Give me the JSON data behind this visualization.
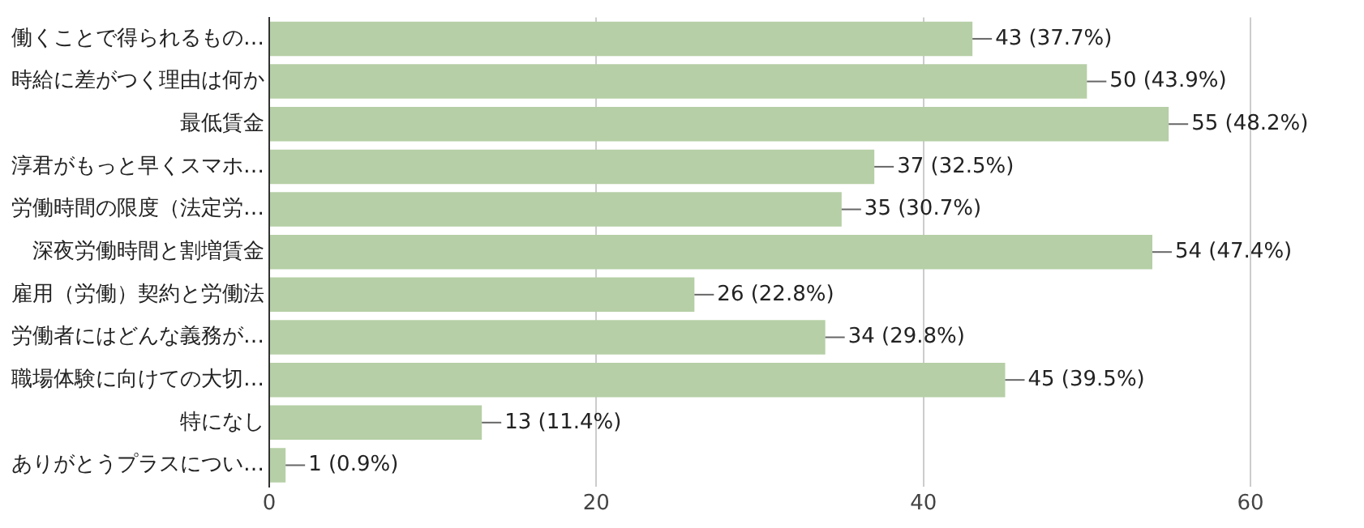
{
  "chart_data": {
    "type": "bar",
    "orientation": "horizontal",
    "categories": [
      "働くことで得られるもの…",
      "時給に差がつく理由は何か",
      "最低賃金",
      "淳君がもっと早くスマホ…",
      "労働時間の限度（法定労…",
      "深夜労働時間と割増賃金",
      "雇用（労働）契約と労働法",
      "労働者にはどんな義務が…",
      "職場体験に向けての大切…",
      "特になし",
      "ありがとうプラスについ…"
    ],
    "values": [
      43,
      50,
      55,
      37,
      35,
      54,
      26,
      34,
      45,
      13,
      1
    ],
    "value_labels": [
      "43 (37.7%)",
      "50 (43.9%)",
      "55 (48.2%)",
      "37 (32.5%)",
      "35 (30.7%)",
      "54 (47.4%)",
      "26 (22.8%)",
      "34 (29.8%)",
      "45 (39.5%)",
      "13 (11.4%)",
      "1 (0.9%)"
    ],
    "color": "#b6cfa6",
    "xlim": [
      0,
      60
    ],
    "xticks": [
      0,
      20,
      40,
      60
    ],
    "grid": "x",
    "legend": false
  }
}
